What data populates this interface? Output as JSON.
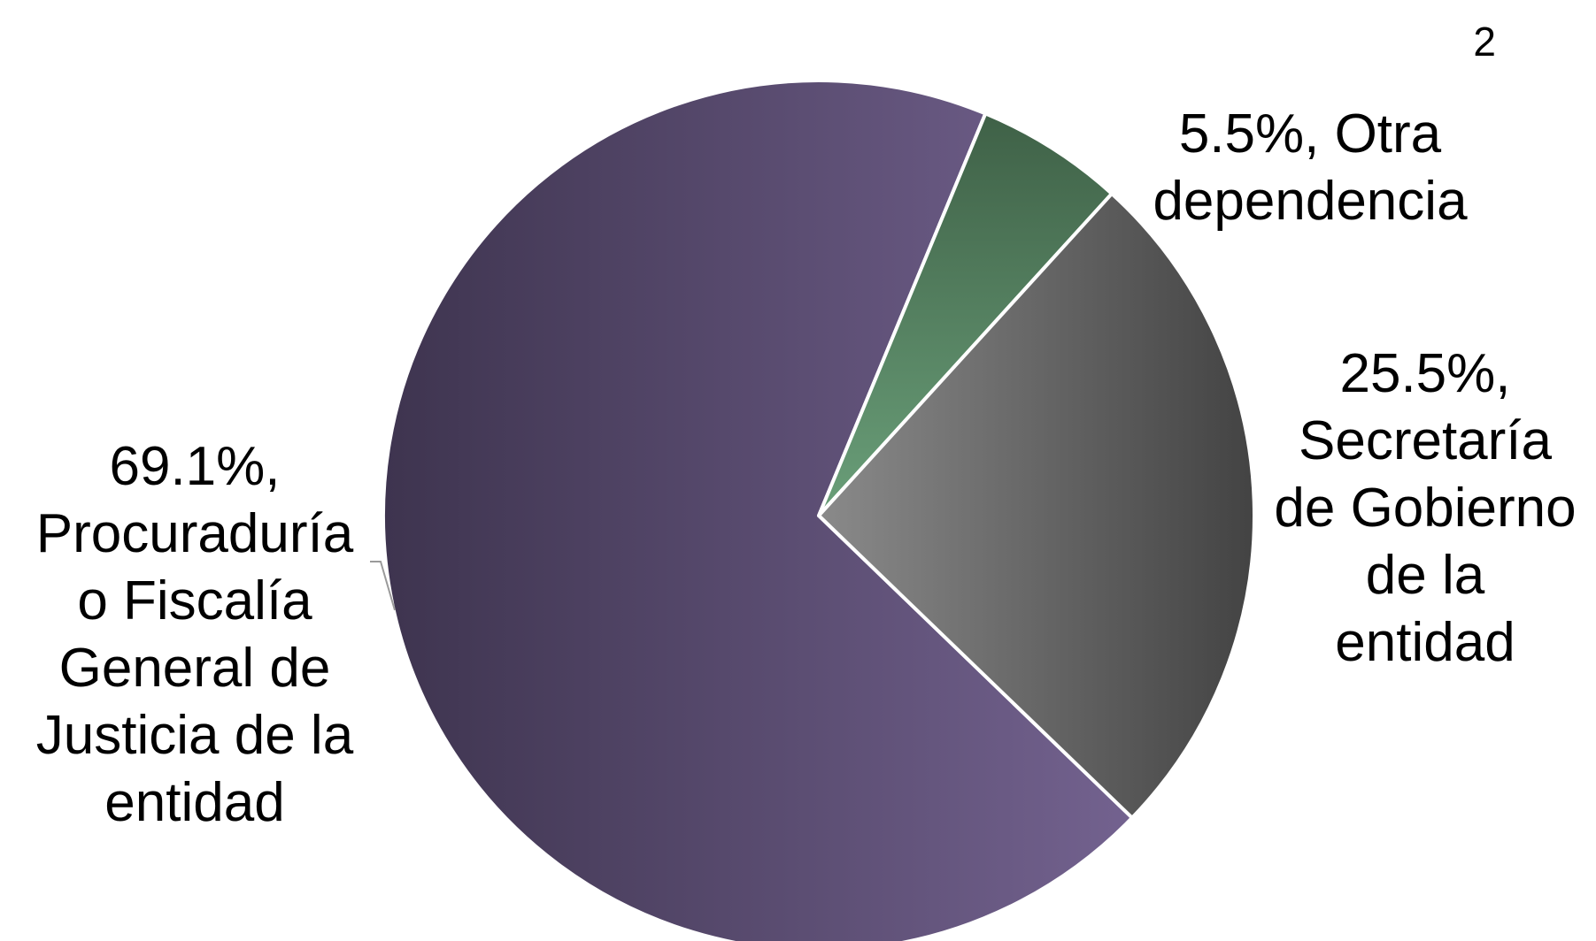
{
  "chart_data": {
    "type": "pie",
    "slices": [
      {
        "value": 69.1,
        "label": "69.1%,\nProcuraduría\no Fiscalía\nGeneral de\nJusticia de la\nentidad",
        "colors": [
          "#3e344f",
          "#73628f"
        ]
      },
      {
        "value": 5.5,
        "label": "5.5%,     Otra\ndependencia",
        "superscript": "2",
        "colors": [
          "#3f6147",
          "#6a9f79"
        ]
      },
      {
        "value": 25.5,
        "label": "25.5%,\nSecretaría\nde Gobierno\nde la\nentidad",
        "colors": [
          "#8a8a8a",
          "#434343"
        ]
      }
    ],
    "start_angle_deg": 22.5,
    "direction": "clockwise",
    "border_color": "#ffffff",
    "leader_line_color": "#9a9a9a"
  }
}
